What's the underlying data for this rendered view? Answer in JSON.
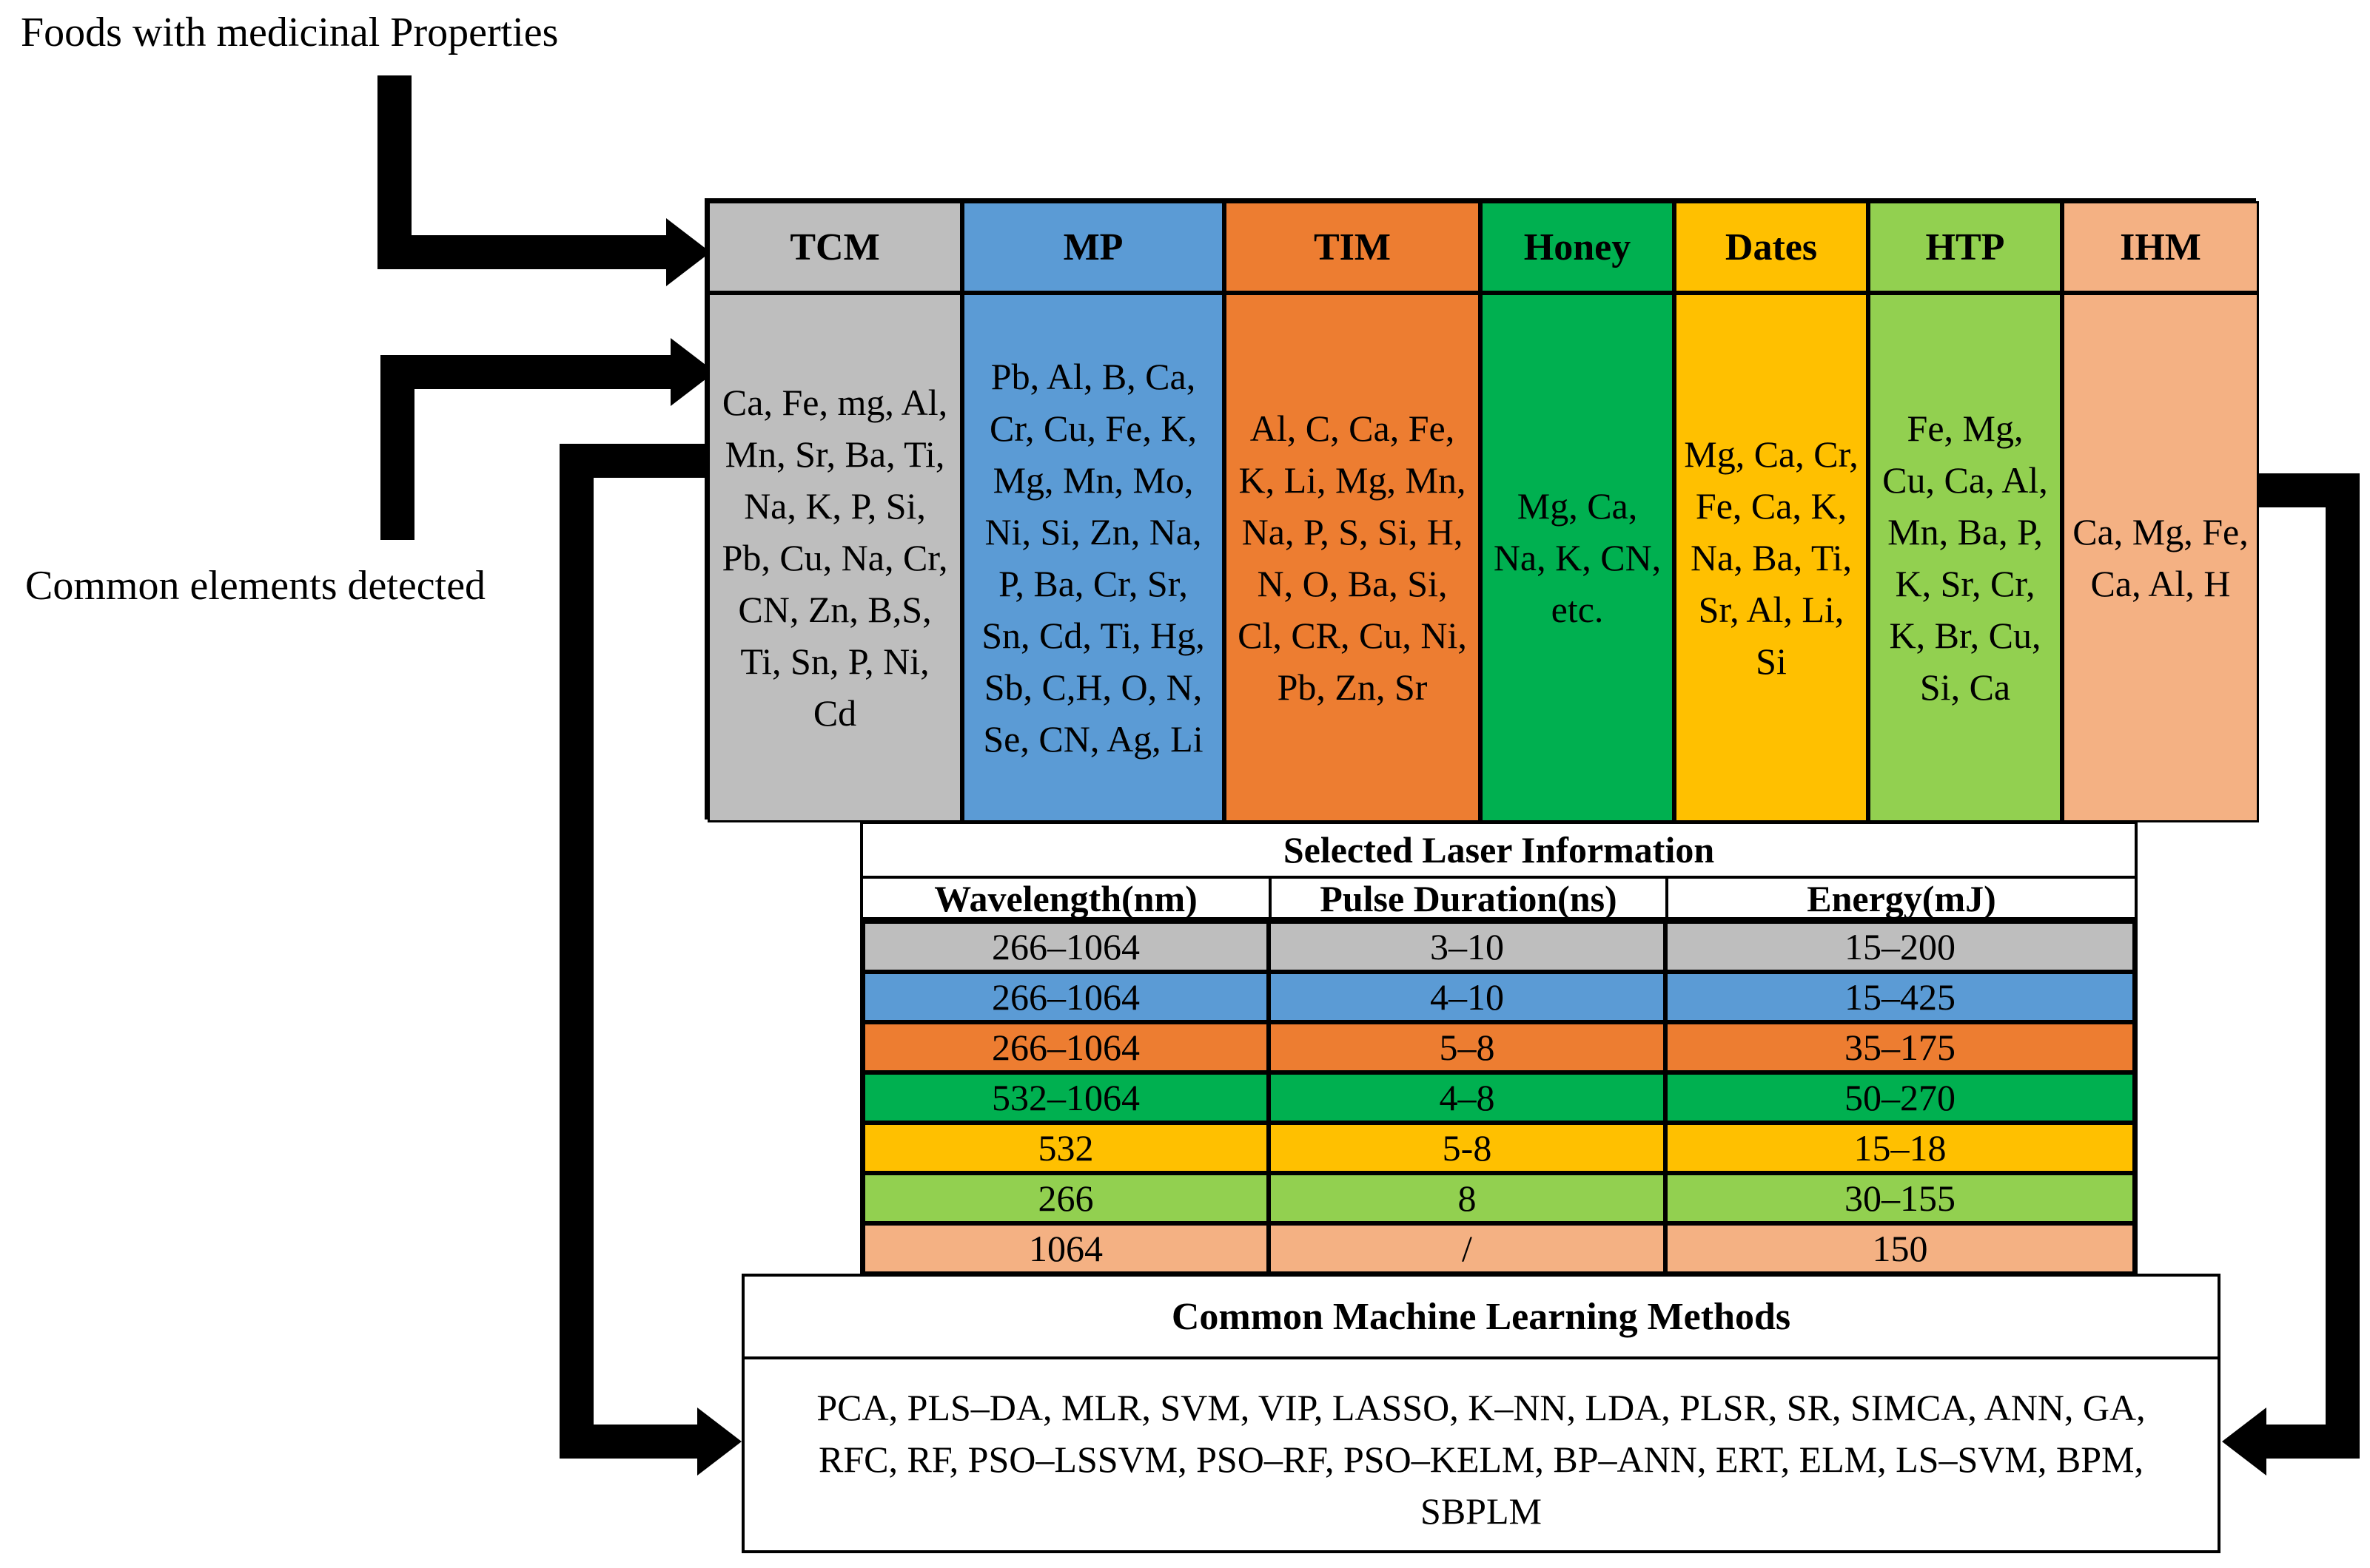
{
  "labels": {
    "top": "Foods with medicinal Properties",
    "left": "Common elements detected"
  },
  "foods": [
    {
      "name": "TCM",
      "color": "#BEBEBE",
      "elements": "Ca, Fe, mg, Al, Mn, Sr, Ba, Ti, Na, K, P, Si, Pb, Cu, Na, Cr, CN, Zn, B,S, Ti, Sn, P, Ni, Cd"
    },
    {
      "name": "MP",
      "color": "#5B9BD5",
      "elements": "Pb, Al, B, Ca, Cr, Cu, Fe, K, Mg, Mn, Mo, Ni, Si, Zn, Na, P, Ba, Cr, Sr, Sn, Cd, Ti, Hg, Sb, C,H, O, N, Se, CN, Ag, Li"
    },
    {
      "name": "TIM",
      "color": "#ED7D31",
      "elements": "Al, C, Ca, Fe, K, Li, Mg, Mn, Na, P, S, Si, H, N, O, Ba, Si, Cl, CR, Cu, Ni, Pb, Zn, Sr"
    },
    {
      "name": "Honey",
      "color": "#00B050",
      "elements": "Mg, Ca, Na, K, CN, etc."
    },
    {
      "name": "Dates",
      "color": "#FFC000",
      "elements": "Mg, Ca, Cr, Fe, Ca, K, Na, Ba, Ti, Sr, Al, Li, Si"
    },
    {
      "name": "HTP",
      "color": "#92D050",
      "elements": "Fe, Mg, Cu, Ca, Al, Mn, Ba, P, K, Sr, Cr, K, Br, Cu, Si, Ca"
    },
    {
      "name": "IHM",
      "color": "#F4B183",
      "elements": "Ca, Mg, Fe, Ca, Al, H"
    }
  ],
  "laser": {
    "title": "Selected Laser Information",
    "headers": [
      "Wavelength(nm)",
      "Pulse Duration(ns)",
      "Energy(mJ)"
    ],
    "rows": [
      {
        "color": "#BEBEBE",
        "values": [
          "266–1064",
          "3–10",
          "15–200"
        ]
      },
      {
        "color": "#5B9BD5",
        "values": [
          "266–1064",
          "4–10",
          "15–425"
        ]
      },
      {
        "color": "#ED7D31",
        "values": [
          "266–1064",
          "5–8",
          "35–175"
        ]
      },
      {
        "color": "#00B050",
        "values": [
          "532–1064",
          "4–8",
          "50–270"
        ]
      },
      {
        "color": "#FFC000",
        "values": [
          "532",
          "5-8",
          "15–18"
        ]
      },
      {
        "color": "#92D050",
        "values": [
          "266",
          "8",
          "30–155"
        ]
      },
      {
        "color": "#F4B183",
        "values": [
          "1064",
          "/",
          "150"
        ]
      }
    ]
  },
  "ml": {
    "title": "Common Machine Learning Methods",
    "methods": "PCA, PLS–DA, MLR, SVM, VIP, LASSO, K–NN, LDA, PLSR, SR, SIMCA, ANN, GA, RFC, RF, PSO–LSSVM, PSO–RF, PSO–KELM, BP–ANN, ERT, ELM, LS–SVM, BPM, SBPLM"
  }
}
